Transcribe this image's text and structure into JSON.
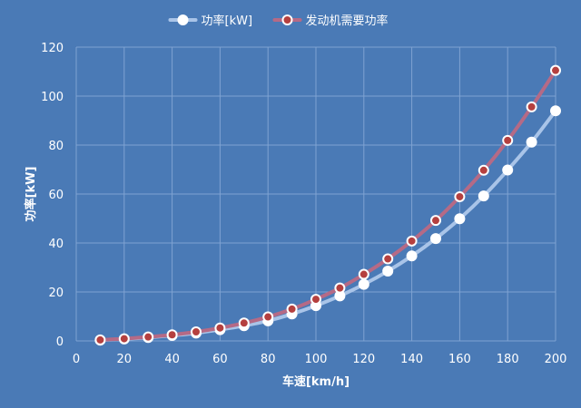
{
  "chart_data": {
    "type": "line",
    "title": "",
    "xlabel": "车速[km/h]",
    "ylabel": "功率[kW]",
    "xlim": [
      0,
      200
    ],
    "ylim": [
      0,
      120
    ],
    "x_ticks": [
      0,
      20,
      40,
      60,
      80,
      100,
      120,
      140,
      160,
      180,
      200
    ],
    "y_ticks": [
      0,
      20,
      40,
      60,
      80,
      100,
      120
    ],
    "grid": true,
    "legend_position": "top-center",
    "x": [
      10,
      20,
      30,
      40,
      50,
      60,
      70,
      80,
      90,
      100,
      110,
      120,
      130,
      140,
      150,
      160,
      170,
      180,
      190,
      200
    ],
    "series": [
      {
        "name": "功率[kW]",
        "line_color": "#a9c4e8",
        "marker_fill": "#ffffff",
        "values": [
          0.3,
          0.8,
          1.4,
          2.2,
          3.2,
          4.6,
          6.2,
          8.2,
          11.0,
          14.4,
          18.4,
          23.1,
          28.5,
          34.7,
          41.8,
          49.9,
          59.2,
          69.8,
          81.2,
          94.0
        ]
      },
      {
        "name": "发动机需要功率",
        "line_color": "#b56a86",
        "marker_fill": "#b5403f",
        "values": [
          0.4,
          0.9,
          1.6,
          2.5,
          3.7,
          5.3,
          7.3,
          9.8,
          13.0,
          17.0,
          21.6,
          27.2,
          33.5,
          40.8,
          49.2,
          58.9,
          69.7,
          81.9,
          95.6,
          110.5
        ]
      }
    ]
  }
}
